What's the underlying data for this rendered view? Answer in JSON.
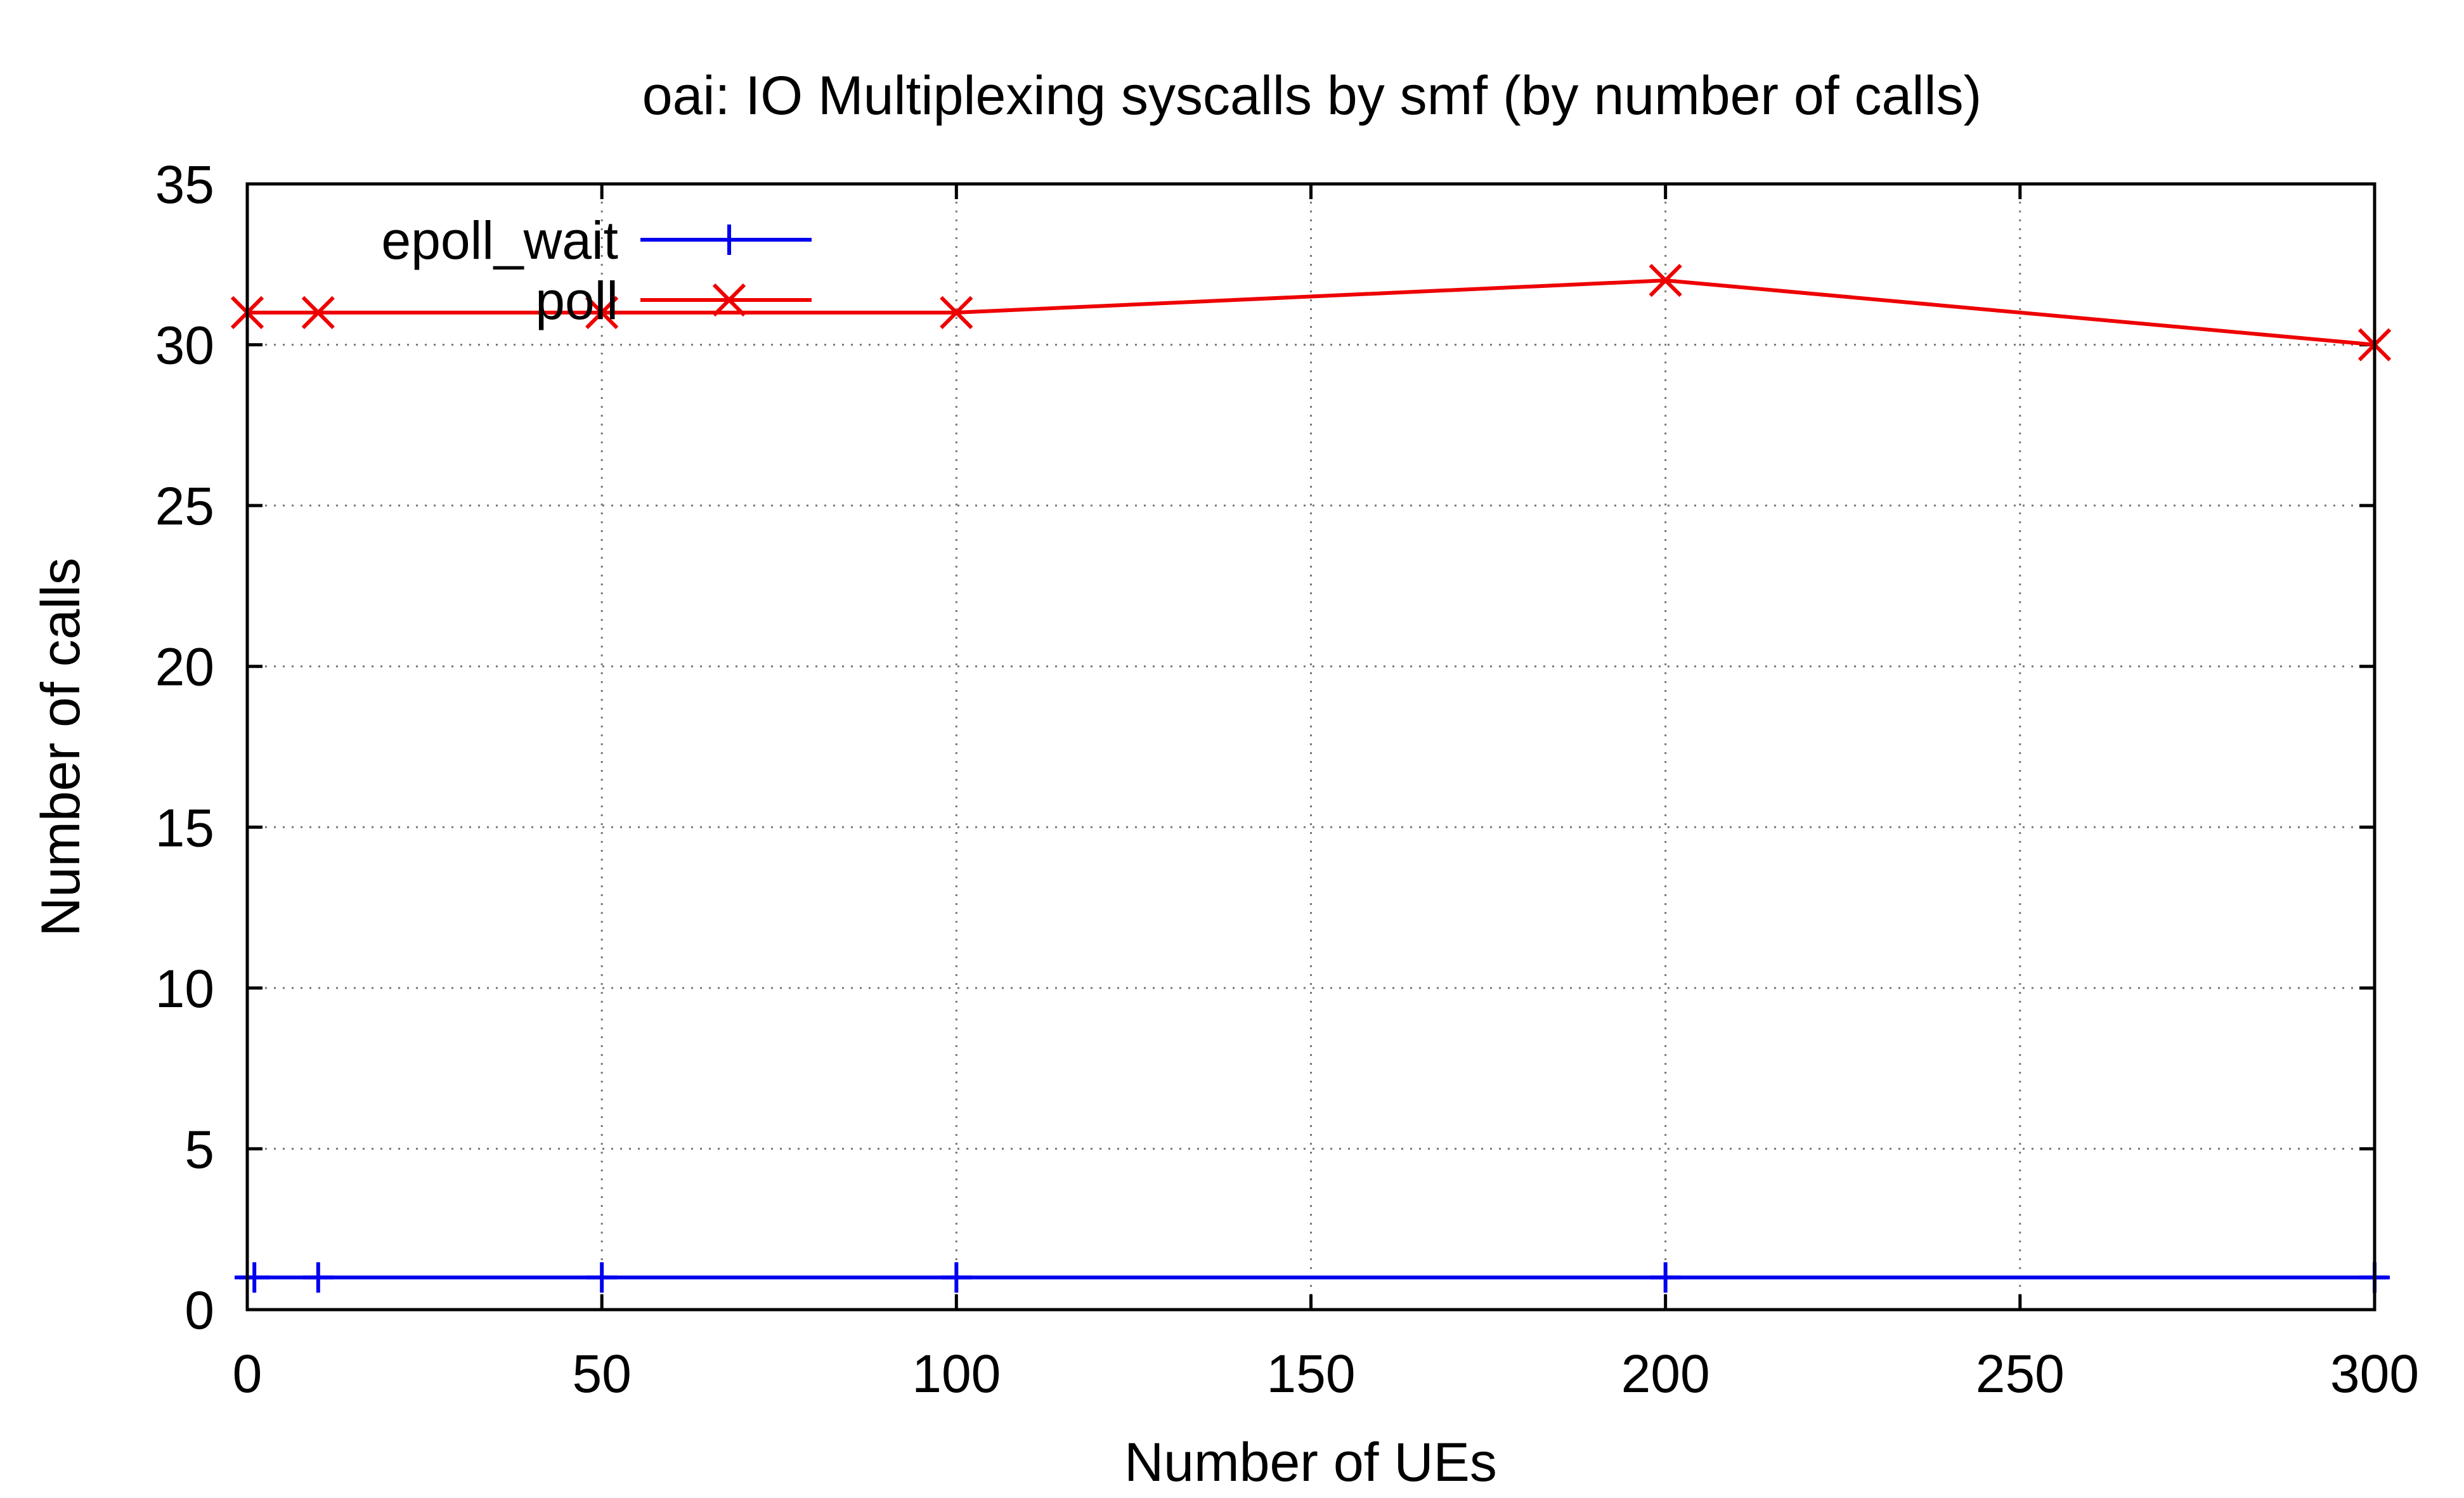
{
  "chart_data": {
    "type": "line",
    "title": "oai: IO Multiplexing syscalls by smf (by number of calls)",
    "xlabel": "Number of UEs",
    "ylabel": "Number of calls",
    "xlim": [
      0,
      300
    ],
    "ylim": [
      0,
      35
    ],
    "xticks": [
      "0",
      "50",
      "100",
      "150",
      "200",
      "250",
      "300"
    ],
    "yticks": [
      "0",
      "5",
      "10",
      "15",
      "20",
      "25",
      "30",
      "35"
    ],
    "grid": true,
    "legend_position": "top-left",
    "series": [
      {
        "name": "epoll_wait",
        "color": "#0000ee",
        "marker": "plus",
        "x": [
          1,
          10,
          50,
          100,
          200,
          300
        ],
        "y": [
          1,
          1,
          1,
          1,
          1,
          1
        ]
      },
      {
        "name": "poll",
        "color": "#ee0000",
        "marker": "x",
        "x": [
          0,
          10,
          50,
          100,
          200,
          300
        ],
        "y": [
          31,
          31,
          31,
          31,
          32,
          30
        ]
      }
    ]
  }
}
